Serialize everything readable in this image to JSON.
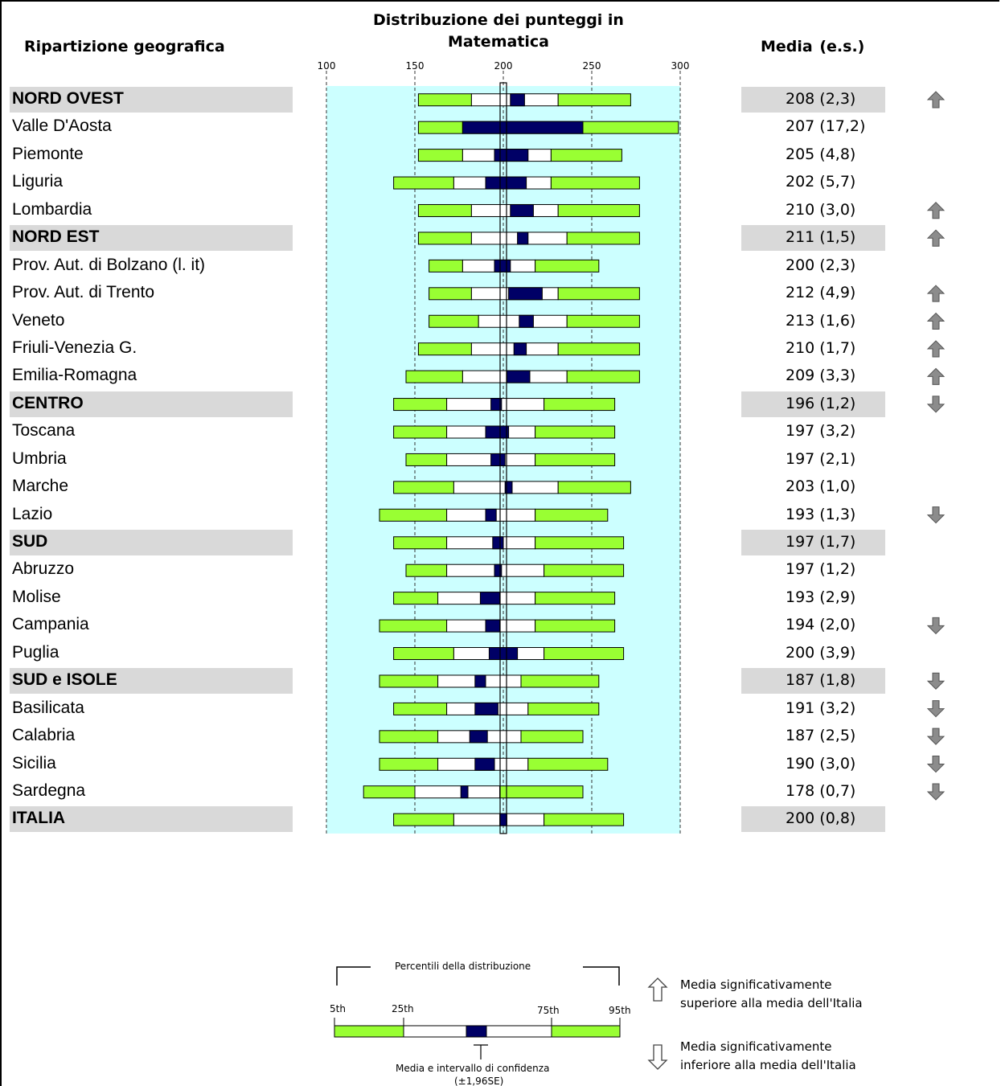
{
  "headers": {
    "region": "Ripartizione geografica",
    "title_line1": "Distribuzione dei punteggi in",
    "title_line2": "Matematica",
    "mean": "Media",
    "se": "(e.s.)"
  },
  "colors": {
    "chart_bg": "#ccffff",
    "tail": "#99ff33",
    "ci": "#000066",
    "band": "#d9d9d9"
  },
  "chart_data": {
    "type": "percentile_bar",
    "title": "Distribuzione dei punteggi in Matematica",
    "xlim": [
      100,
      300
    ],
    "xticks": [
      100,
      150,
      200,
      250,
      300
    ],
    "reference_line": 200,
    "rows": [
      {
        "name": "NORD OVEST",
        "group": true,
        "p5": 152,
        "p25": 182,
        "ci_lo": 204,
        "ci_hi": 212,
        "p75": 231,
        "p95": 272,
        "mean": "208",
        "se": "(2,3)",
        "sig": "up"
      },
      {
        "name": "Valle D'Aosta",
        "group": false,
        "p5": 152,
        "p25": 177,
        "ci_lo": 177,
        "ci_hi": 245,
        "p75": 245,
        "p95": 299,
        "mean": "207",
        "se": "(17,2)",
        "sig": ""
      },
      {
        "name": "Piemonte",
        "group": false,
        "p5": 152,
        "p25": 177,
        "ci_lo": 195,
        "ci_hi": 214,
        "p75": 227,
        "p95": 267,
        "mean": "205",
        "se": "(4,8)",
        "sig": ""
      },
      {
        "name": "Liguria",
        "group": false,
        "p5": 138,
        "p25": 172,
        "ci_lo": 190,
        "ci_hi": 213,
        "p75": 227,
        "p95": 277,
        "mean": "202",
        "se": "(5,7)",
        "sig": ""
      },
      {
        "name": "Lombardia",
        "group": false,
        "p5": 152,
        "p25": 182,
        "ci_lo": 204,
        "ci_hi": 217,
        "p75": 231,
        "p95": 277,
        "mean": "210",
        "se": "(3,0)",
        "sig": "up"
      },
      {
        "name": "NORD EST",
        "group": true,
        "p5": 152,
        "p25": 182,
        "ci_lo": 208,
        "ci_hi": 214,
        "p75": 236,
        "p95": 277,
        "mean": "211",
        "se": "(1,5)",
        "sig": "up"
      },
      {
        "name": "Prov. Aut. di Bolzano (l. it)",
        "group": false,
        "p5": 158,
        "p25": 177,
        "ci_lo": 195,
        "ci_hi": 204,
        "p75": 218,
        "p95": 254,
        "mean": "200",
        "se": "(2,3)",
        "sig": ""
      },
      {
        "name": "Prov. Aut. di Trento",
        "group": false,
        "p5": 158,
        "p25": 182,
        "ci_lo": 203,
        "ci_hi": 222,
        "p75": 231,
        "p95": 277,
        "mean": "212",
        "se": "(4,9)",
        "sig": "up"
      },
      {
        "name": "Veneto",
        "group": false,
        "p5": 158,
        "p25": 186,
        "ci_lo": 209,
        "ci_hi": 217,
        "p75": 236,
        "p95": 277,
        "mean": "213",
        "se": "(1,6)",
        "sig": "up"
      },
      {
        "name": "Friuli-Venezia G.",
        "group": false,
        "p5": 152,
        "p25": 182,
        "ci_lo": 206,
        "ci_hi": 213,
        "p75": 231,
        "p95": 277,
        "mean": "210",
        "se": "(1,7)",
        "sig": "up"
      },
      {
        "name": "Emilia-Romagna",
        "group": false,
        "p5": 145,
        "p25": 177,
        "ci_lo": 202,
        "ci_hi": 215,
        "p75": 236,
        "p95": 277,
        "mean": "209",
        "se": "(3,3)",
        "sig": "up"
      },
      {
        "name": "CENTRO",
        "group": true,
        "p5": 138,
        "p25": 168,
        "ci_lo": 193,
        "ci_hi": 199,
        "p75": 223,
        "p95": 263,
        "mean": "196",
        "se": "(1,2)",
        "sig": "down"
      },
      {
        "name": "Toscana",
        "group": false,
        "p5": 138,
        "p25": 168,
        "ci_lo": 190,
        "ci_hi": 203,
        "p75": 218,
        "p95": 263,
        "mean": "197",
        "se": "(3,2)",
        "sig": ""
      },
      {
        "name": "Umbria",
        "group": false,
        "p5": 145,
        "p25": 168,
        "ci_lo": 193,
        "ci_hi": 201,
        "p75": 218,
        "p95": 263,
        "mean": "197",
        "se": "(2,1)",
        "sig": ""
      },
      {
        "name": "Marche",
        "group": false,
        "p5": 138,
        "p25": 172,
        "ci_lo": 201,
        "ci_hi": 205,
        "p75": 231,
        "p95": 272,
        "mean": "203",
        "se": "(1,0)",
        "sig": ""
      },
      {
        "name": "Lazio",
        "group": false,
        "p5": 130,
        "p25": 168,
        "ci_lo": 190,
        "ci_hi": 196,
        "p75": 218,
        "p95": 259,
        "mean": "193",
        "se": "(1,3)",
        "sig": "down"
      },
      {
        "name": "SUD",
        "group": true,
        "p5": 138,
        "p25": 168,
        "ci_lo": 194,
        "ci_hi": 200,
        "p75": 218,
        "p95": 268,
        "mean": "197",
        "se": "(1,7)",
        "sig": ""
      },
      {
        "name": "Abruzzo",
        "group": false,
        "p5": 145,
        "p25": 168,
        "ci_lo": 195,
        "ci_hi": 199,
        "p75": 223,
        "p95": 268,
        "mean": "197",
        "se": "(1,2)",
        "sig": ""
      },
      {
        "name": "Molise",
        "group": false,
        "p5": 138,
        "p25": 163,
        "ci_lo": 187,
        "ci_hi": 198,
        "p75": 218,
        "p95": 263,
        "mean": "193",
        "se": "(2,9)",
        "sig": ""
      },
      {
        "name": "Campania",
        "group": false,
        "p5": 130,
        "p25": 168,
        "ci_lo": 190,
        "ci_hi": 198,
        "p75": 218,
        "p95": 263,
        "mean": "194",
        "se": "(2,0)",
        "sig": "down"
      },
      {
        "name": "Puglia",
        "group": false,
        "p5": 138,
        "p25": 172,
        "ci_lo": 192,
        "ci_hi": 208,
        "p75": 223,
        "p95": 268,
        "mean": "200",
        "se": "(3,9)",
        "sig": ""
      },
      {
        "name": "SUD e ISOLE",
        "group": true,
        "p5": 130,
        "p25": 163,
        "ci_lo": 184,
        "ci_hi": 190,
        "p75": 210,
        "p95": 254,
        "mean": "187",
        "se": "(1,8)",
        "sig": "down"
      },
      {
        "name": "Basilicata",
        "group": false,
        "p5": 138,
        "p25": 168,
        "ci_lo": 184,
        "ci_hi": 197,
        "p75": 214,
        "p95": 254,
        "mean": "191",
        "se": "(3,2)",
        "sig": "down"
      },
      {
        "name": "Calabria",
        "group": false,
        "p5": 130,
        "p25": 163,
        "ci_lo": 181,
        "ci_hi": 191,
        "p75": 210,
        "p95": 245,
        "mean": "187",
        "se": "(2,5)",
        "sig": "down"
      },
      {
        "name": "Sicilia",
        "group": false,
        "p5": 130,
        "p25": 163,
        "ci_lo": 184,
        "ci_hi": 195,
        "p75": 214,
        "p95": 259,
        "mean": "190",
        "se": "(3,0)",
        "sig": "down"
      },
      {
        "name": "Sardegna",
        "group": false,
        "p5": 121,
        "p25": 150,
        "ci_lo": 176,
        "ci_hi": 180,
        "p75": 198,
        "p95": 245,
        "mean": "178",
        "se": "(0,7)",
        "sig": "down"
      },
      {
        "name": "ITALIA",
        "group": true,
        "p5": 138,
        "p25": 172,
        "ci_lo": 198,
        "ci_hi": 202,
        "p75": 223,
        "p95": 268,
        "mean": "200",
        "se": "(0,8)",
        "sig": ""
      }
    ]
  },
  "legend": {
    "percentiles_title": "Percentili della distribuzione",
    "p5_label": "5th",
    "p25_label": "25th",
    "p75_label": "75th",
    "p95_label": "95th",
    "ci_label_line1": "Media e intervallo di confidenza",
    "ci_label_line2": "(±1,96SE)",
    "up_line1": "Media significativamente",
    "up_line2": "superiore alla media dell'Italia",
    "down_line1": "Media significativamente",
    "down_line2": "inferiore alla media dell'Italia"
  }
}
